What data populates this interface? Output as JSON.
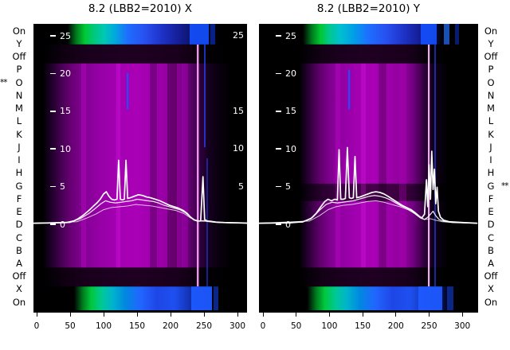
{
  "titles": {
    "left": "8.2 (LBB2=2010) X",
    "right": "8.2 (LBB2=2010) Y"
  },
  "row_axis": {
    "left": [
      {
        "label": "On",
        "marker": ""
      },
      {
        "label": "Y",
        "marker": ""
      },
      {
        "label": "Off",
        "marker": ""
      },
      {
        "label": "P",
        "marker": ""
      },
      {
        "label": "O",
        "marker": "**"
      },
      {
        "label": "N",
        "marker": ""
      },
      {
        "label": "M",
        "marker": ""
      },
      {
        "label": "L",
        "marker": ""
      },
      {
        "label": "K",
        "marker": ""
      },
      {
        "label": "J",
        "marker": ""
      },
      {
        "label": "I",
        "marker": ""
      },
      {
        "label": "H",
        "marker": ""
      },
      {
        "label": "G",
        "marker": ""
      },
      {
        "label": "F",
        "marker": ""
      },
      {
        "label": "E",
        "marker": ""
      },
      {
        "label": "D",
        "marker": ""
      },
      {
        "label": "C",
        "marker": ""
      },
      {
        "label": "B",
        "marker": ""
      },
      {
        "label": "A",
        "marker": ""
      },
      {
        "label": "Off",
        "marker": ""
      },
      {
        "label": "X",
        "marker": ""
      },
      {
        "label": "On",
        "marker": ""
      }
    ],
    "right": [
      {
        "label": "On",
        "marker": ""
      },
      {
        "label": "Y",
        "marker": ""
      },
      {
        "label": "Off",
        "marker": ""
      },
      {
        "label": "P",
        "marker": ""
      },
      {
        "label": "O",
        "marker": ""
      },
      {
        "label": "N",
        "marker": ""
      },
      {
        "label": "M",
        "marker": ""
      },
      {
        "label": "L",
        "marker": ""
      },
      {
        "label": "K",
        "marker": ""
      },
      {
        "label": "J",
        "marker": ""
      },
      {
        "label": "I",
        "marker": ""
      },
      {
        "label": "H",
        "marker": ""
      },
      {
        "label": "G",
        "marker": "**"
      },
      {
        "label": "F",
        "marker": ""
      },
      {
        "label": "E",
        "marker": ""
      },
      {
        "label": "D",
        "marker": ""
      },
      {
        "label": "C",
        "marker": ""
      },
      {
        "label": "B",
        "marker": ""
      },
      {
        "label": "A",
        "marker": ""
      },
      {
        "label": "Off",
        "marker": ""
      },
      {
        "label": "X",
        "marker": ""
      },
      {
        "label": "On",
        "marker": ""
      }
    ]
  },
  "chart_data": [
    {
      "type": "heatmap",
      "title": "8.2 (LBB2=2010) X",
      "x_ticks": [
        0,
        50,
        100,
        150,
        200,
        250,
        300
      ],
      "y_ticks": [
        25,
        20,
        15,
        10,
        5,
        0
      ],
      "y_ticks_right": [
        25,
        15,
        10,
        5
      ],
      "xlim": [
        -5,
        320
      ],
      "ylim": [
        -12,
        26.6
      ],
      "colormap": "black to purple to magenta body; green-cyan-blue bright bands across the On/Y rows (top) and X/On rows (bottom); dark Off rows",
      "series": [
        {
          "name": "trace-secondary-b",
          "points": [
            [
              -5,
              0
            ],
            [
              60,
              0.2
            ],
            [
              75,
              0.7
            ],
            [
              88,
              1.2
            ],
            [
              100,
              1.8
            ],
            [
              112,
              2.1
            ],
            [
              124,
              2.2
            ],
            [
              136,
              2.3
            ],
            [
              148,
              2.5
            ],
            [
              160,
              2.4
            ],
            [
              172,
              2.3
            ],
            [
              184,
              2.1
            ],
            [
              196,
              1.9
            ],
            [
              208,
              1.7
            ],
            [
              220,
              1.3
            ],
            [
              230,
              0.7
            ],
            [
              240,
              0.3
            ],
            [
              252,
              0.25
            ],
            [
              265,
              0.12
            ],
            [
              285,
              0.05
            ],
            [
              320,
              0
            ]
          ]
        },
        {
          "name": "trace-secondary-a",
          "points": [
            [
              -5,
              0
            ],
            [
              50,
              0.1
            ],
            [
              65,
              0.6
            ],
            [
              78,
              1.3
            ],
            [
              88,
              2.0
            ],
            [
              96,
              2.6
            ],
            [
              103,
              3.0
            ],
            [
              110,
              2.8
            ],
            [
              118,
              2.7
            ],
            [
              126,
              2.8
            ],
            [
              134,
              2.9
            ],
            [
              142,
              3.0
            ],
            [
              150,
              3.2
            ],
            [
              158,
              3.1
            ],
            [
              166,
              3.0
            ],
            [
              174,
              2.9
            ],
            [
              182,
              2.7
            ],
            [
              190,
              2.4
            ],
            [
              198,
              2.2
            ],
            [
              206,
              2.0
            ],
            [
              214,
              1.8
            ],
            [
              222,
              1.4
            ],
            [
              229,
              0.9
            ],
            [
              235,
              0.5
            ],
            [
              242,
              0.3
            ],
            [
              250,
              0.35
            ],
            [
              258,
              0.25
            ],
            [
              270,
              0.12
            ],
            [
              290,
              0.05
            ],
            [
              320,
              0
            ]
          ]
        },
        {
          "name": "trace-main",
          "points": [
            [
              -5,
              0
            ],
            [
              30,
              0.05
            ],
            [
              45,
              0.1
            ],
            [
              55,
              0.3
            ],
            [
              62,
              0.6
            ],
            [
              70,
              1.1
            ],
            [
              78,
              1.7
            ],
            [
              85,
              2.3
            ],
            [
              90,
              2.7
            ],
            [
              95,
              3.2
            ],
            [
              100,
              3.9
            ],
            [
              104,
              4.2
            ],
            [
              108,
              3.6
            ],
            [
              112,
              3.2
            ],
            [
              116,
              3.1
            ],
            [
              120,
              3.2
            ],
            [
              122.5,
              8.4
            ],
            [
              125,
              3.2
            ],
            [
              128,
              3.1
            ],
            [
              131,
              3.2
            ],
            [
              133.5,
              8.4
            ],
            [
              136,
              3.3
            ],
            [
              140,
              3.4
            ],
            [
              146,
              3.6
            ],
            [
              152,
              3.8
            ],
            [
              158,
              3.7
            ],
            [
              164,
              3.5
            ],
            [
              170,
              3.4
            ],
            [
              177,
              3.2
            ],
            [
              184,
              3.0
            ],
            [
              191,
              2.7
            ],
            [
              198,
              2.4
            ],
            [
              205,
              2.2
            ],
            [
              212,
              2.0
            ],
            [
              219,
              1.7
            ],
            [
              225,
              1.3
            ],
            [
              230,
              0.8
            ],
            [
              235,
              0.45
            ],
            [
              240,
              0.3
            ],
            [
              245,
              0.3
            ],
            [
              248.5,
              6.2
            ],
            [
              251,
              0.5
            ],
            [
              255,
              0.3
            ],
            [
              260,
              0.25
            ],
            [
              268,
              0.15
            ],
            [
              280,
              0.1
            ],
            [
              300,
              0.05
            ],
            [
              320,
              0
            ]
          ]
        }
      ]
    },
    {
      "type": "heatmap",
      "title": "8.2 (LBB2=2010) Y",
      "x_ticks": [
        0,
        50,
        100,
        150,
        200,
        250,
        300
      ],
      "y_ticks": [
        25,
        20,
        15,
        10,
        5,
        0
      ],
      "xlim": [
        -6,
        322
      ],
      "ylim": [
        -12,
        26.6
      ],
      "colormap": "black to purple to magenta body; green-cyan-blue bright bands across the On/Y rows (top) and X/On rows (bottom); dark Off rows and dark G-row stripe",
      "series": [
        {
          "name": "trace-secondary-b",
          "points": [
            [
              -6,
              0
            ],
            [
              70,
              0.3
            ],
            [
              85,
              1.0
            ],
            [
              98,
              1.8
            ],
            [
              110,
              2.2
            ],
            [
              122,
              2.4
            ],
            [
              134,
              2.5
            ],
            [
              146,
              2.7
            ],
            [
              158,
              2.9
            ],
            [
              170,
              3.0
            ],
            [
              182,
              2.8
            ],
            [
              194,
              2.5
            ],
            [
              206,
              2.2
            ],
            [
              218,
              1.8
            ],
            [
              228,
              1.3
            ],
            [
              236,
              0.8
            ],
            [
              244,
              0.5
            ],
            [
              252,
              0.6
            ],
            [
              260,
              0.4
            ],
            [
              270,
              0.2
            ],
            [
              290,
              0.08
            ],
            [
              322,
              0
            ]
          ]
        },
        {
          "name": "trace-secondary-a",
          "points": [
            [
              -6,
              0
            ],
            [
              60,
              0.15
            ],
            [
              75,
              0.8
            ],
            [
              86,
              1.8
            ],
            [
              95,
              2.5
            ],
            [
              104,
              2.8
            ],
            [
              112,
              2.7
            ],
            [
              120,
              2.8
            ],
            [
              128,
              2.9
            ],
            [
              136,
              3.0
            ],
            [
              144,
              3.2
            ],
            [
              152,
              3.4
            ],
            [
              160,
              3.6
            ],
            [
              168,
              3.7
            ],
            [
              176,
              3.6
            ],
            [
              184,
              3.4
            ],
            [
              192,
              3.1
            ],
            [
              200,
              2.7
            ],
            [
              208,
              2.3
            ],
            [
              216,
              2.0
            ],
            [
              224,
              1.6
            ],
            [
              231,
              1.1
            ],
            [
              237,
              0.7
            ],
            [
              243,
              0.5
            ],
            [
              248,
              0.8
            ],
            [
              252,
              1.2
            ],
            [
              256,
              1.6
            ],
            [
              260,
              1.0
            ],
            [
              265,
              0.5
            ],
            [
              272,
              0.25
            ],
            [
              285,
              0.1
            ],
            [
              322,
              0
            ]
          ]
        },
        {
          "name": "trace-main",
          "points": [
            [
              -6,
              0
            ],
            [
              40,
              0.05
            ],
            [
              60,
              0.2
            ],
            [
              72,
              0.6
            ],
            [
              80,
              1.3
            ],
            [
              87,
              2.2
            ],
            [
              93,
              2.9
            ],
            [
              98,
              3.2
            ],
            [
              103,
              3.0
            ],
            [
              108,
              3.2
            ],
            [
              112,
              3.1
            ],
            [
              114.5,
              9.8
            ],
            [
              117,
              3.2
            ],
            [
              121,
              3.2
            ],
            [
              124,
              3.3
            ],
            [
              127,
              10.1
            ],
            [
              130,
              3.4
            ],
            [
              133,
              3.3
            ],
            [
              136,
              3.4
            ],
            [
              138.5,
              8.9
            ],
            [
              141,
              3.4
            ],
            [
              146,
              3.5
            ],
            [
              152,
              3.7
            ],
            [
              158,
              3.9
            ],
            [
              164,
              4.1
            ],
            [
              170,
              4.2
            ],
            [
              176,
              4.1
            ],
            [
              182,
              3.9
            ],
            [
              188,
              3.6
            ],
            [
              195,
              3.2
            ],
            [
              202,
              2.8
            ],
            [
              209,
              2.4
            ],
            [
              216,
              2.1
            ],
            [
              223,
              1.8
            ],
            [
              229,
              1.4
            ],
            [
              234,
              1.0
            ],
            [
              239,
              0.7
            ],
            [
              243,
              1.2
            ],
            [
              246,
              5.8
            ],
            [
              248,
              2.2
            ],
            [
              250,
              7.8
            ],
            [
              252,
              3.2
            ],
            [
              254,
              9.6
            ],
            [
              256,
              4.5
            ],
            [
              258,
              7.2
            ],
            [
              260,
              2.6
            ],
            [
              262,
              4.8
            ],
            [
              264,
              1.6
            ],
            [
              267,
              0.8
            ],
            [
              272,
              0.4
            ],
            [
              280,
              0.2
            ],
            [
              300,
              0.1
            ],
            [
              322,
              0
            ]
          ]
        }
      ]
    }
  ]
}
